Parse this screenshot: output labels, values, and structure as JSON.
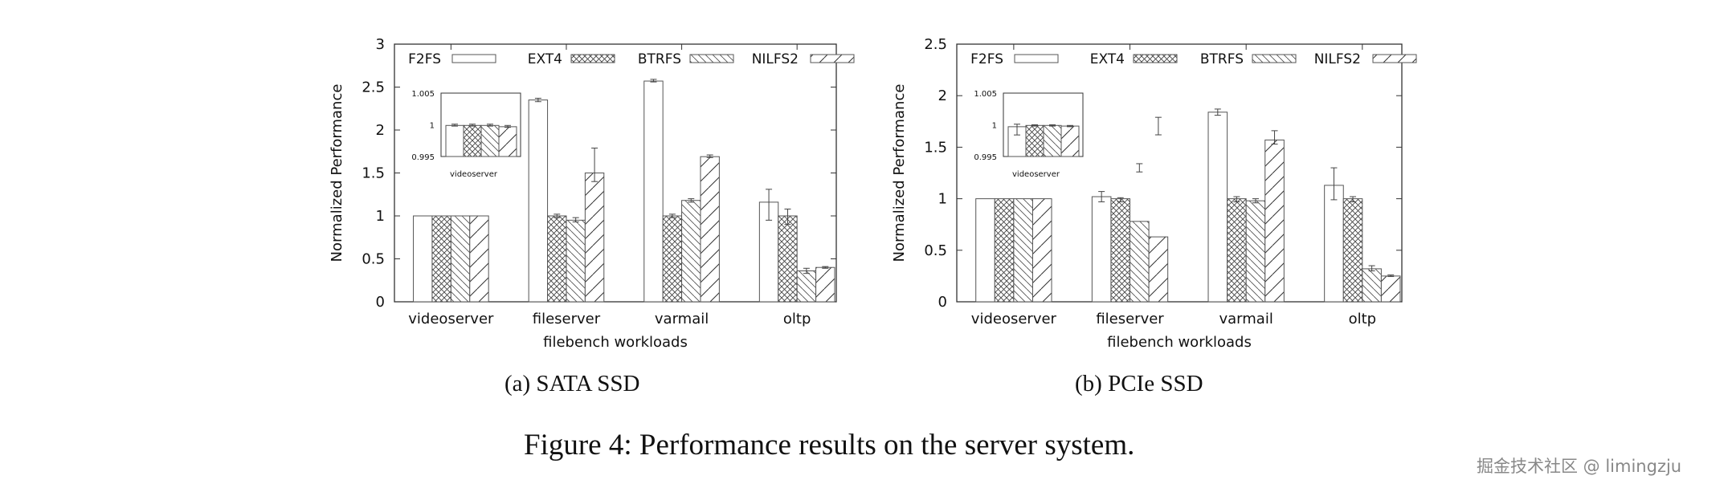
{
  "chart_data": [
    {
      "type": "bar",
      "title": "(a) SATA SSD",
      "xlabel": "filebench workloads",
      "ylabel": "Normalized Performance",
      "ylim": [
        0,
        3
      ],
      "yticks": [
        "0",
        "0.5",
        "1",
        "1.5",
        "2",
        "2.5",
        "3"
      ],
      "categories": [
        "videoserver",
        "fileserver",
        "varmail",
        "oltp"
      ],
      "legend_position": "top",
      "series": [
        {
          "name": "F2FS",
          "pattern": "empty",
          "values": [
            1.0,
            2.35,
            2.57,
            1.16
          ],
          "err_low": [
            1.0,
            2.33,
            2.56,
            0.95
          ],
          "err_high": [
            1.0,
            2.37,
            2.59,
            1.31
          ]
        },
        {
          "name": "EXT4",
          "pattern": "crosshatch",
          "values": [
            1.0,
            1.0,
            1.0,
            1.0
          ],
          "err_low": [
            1.0,
            0.98,
            0.98,
            0.9
          ],
          "err_high": [
            1.0,
            1.02,
            1.02,
            1.08
          ]
        },
        {
          "name": "BTRFS",
          "pattern": "backslash",
          "values": [
            1.0,
            0.95,
            1.18,
            0.36
          ],
          "err_low": [
            1.0,
            0.93,
            1.16,
            0.33
          ],
          "err_high": [
            1.0,
            0.98,
            1.2,
            0.39
          ]
        },
        {
          "name": "NILFS2",
          "pattern": "slash",
          "values": [
            1.0,
            1.5,
            1.69,
            0.4
          ],
          "err_low": [
            1.0,
            1.4,
            1.68,
            0.39
          ],
          "err_high": [
            1.0,
            1.79,
            1.71,
            0.41
          ]
        }
      ],
      "inset": {
        "category": "videoserver",
        "ylim": [
          0.995,
          1.005
        ],
        "yticks": [
          "0.995",
          "1",
          "1.005"
        ],
        "values": [
          0.9999,
          0.9999,
          0.9999,
          0.9997
        ],
        "err_low": [
          0.9998,
          0.9998,
          0.9998,
          0.9996
        ],
        "err_high": [
          1.0001,
          1.0001,
          1.0001,
          0.9999
        ]
      }
    },
    {
      "type": "bar",
      "title": "(b) PCIe SSD",
      "xlabel": "filebench workloads",
      "ylabel": "Normalized Performance",
      "ylim": [
        0,
        2.5
      ],
      "yticks": [
        "0",
        "0.5",
        "1",
        "1.5",
        "2",
        "2.5"
      ],
      "categories": [
        "videoserver",
        "fileserver",
        "varmail",
        "oltp"
      ],
      "legend_position": "top",
      "series": [
        {
          "name": "F2FS",
          "pattern": "empty",
          "values": [
            1.0,
            1.02,
            1.84,
            1.13
          ],
          "err_low": [
            1.0,
            0.97,
            1.81,
            0.99
          ],
          "err_high": [
            1.0,
            1.07,
            1.87,
            1.3
          ]
        },
        {
          "name": "EXT4",
          "pattern": "crosshatch",
          "values": [
            1.0,
            1.0,
            1.0,
            1.0
          ],
          "err_low": [
            1.0,
            0.97,
            0.97,
            0.97
          ],
          "err_high": [
            1.0,
            1.01,
            1.02,
            1.02
          ]
        },
        {
          "name": "BTRFS",
          "pattern": "backslash",
          "values": [
            1.0,
            0.78,
            0.98,
            0.32
          ],
          "err_low": [
            1.0,
            1.26,
            0.96,
            0.3
          ],
          "err_high": [
            1.0,
            1.34,
            1.0,
            0.35
          ]
        },
        {
          "name": "NILFS2",
          "pattern": "slash",
          "values": [
            1.0,
            0.63,
            1.57,
            0.25
          ],
          "err_low": [
            1.0,
            1.62,
            1.53,
            0.245
          ],
          "err_high": [
            1.0,
            1.79,
            1.66,
            0.26
          ]
        }
      ],
      "inset": {
        "category": "videoserver",
        "ylim": [
          0.995,
          1.005
        ],
        "yticks": [
          "0.995",
          "1",
          "1.005"
        ],
        "values": [
          0.9997,
          0.9999,
          0.9999,
          0.9998
        ],
        "err_low": [
          0.9984,
          0.9998,
          0.9998,
          0.9997
        ],
        "err_high": [
          1.0001,
          1.0,
          1.0,
          0.9999
        ]
      }
    }
  ],
  "figure_caption": "Figure 4: Performance results on the server system.",
  "watermark": "掘金技术社区 @ limingzju"
}
